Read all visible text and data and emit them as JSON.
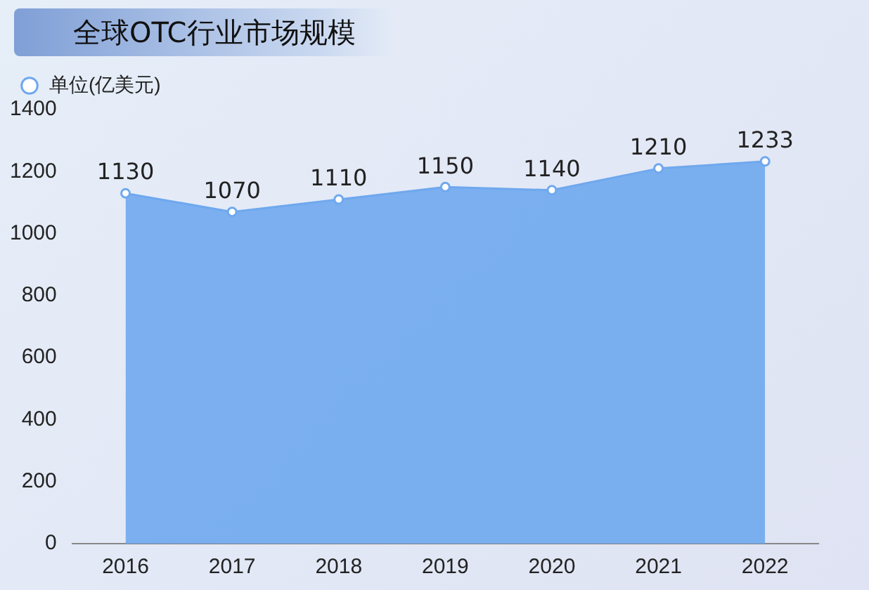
{
  "chart_data": {
    "type": "area",
    "title": "全球OTC行业市场规模",
    "categories": [
      "2016",
      "2017",
      "2018",
      "2019",
      "2020",
      "2021",
      "2022"
    ],
    "series": [
      {
        "name": "单位(亿美元)",
        "color": "#6fa8ee",
        "values": [
          1130,
          1070,
          1110,
          1150,
          1140,
          1210,
          1233
        ]
      }
    ],
    "ylim": [
      0,
      1400
    ],
    "yticks": [
      0,
      200,
      400,
      600,
      800,
      1000,
      1200,
      1400
    ],
    "grid": false,
    "legend": "top left",
    "data_labels": true,
    "marker": "circle"
  }
}
